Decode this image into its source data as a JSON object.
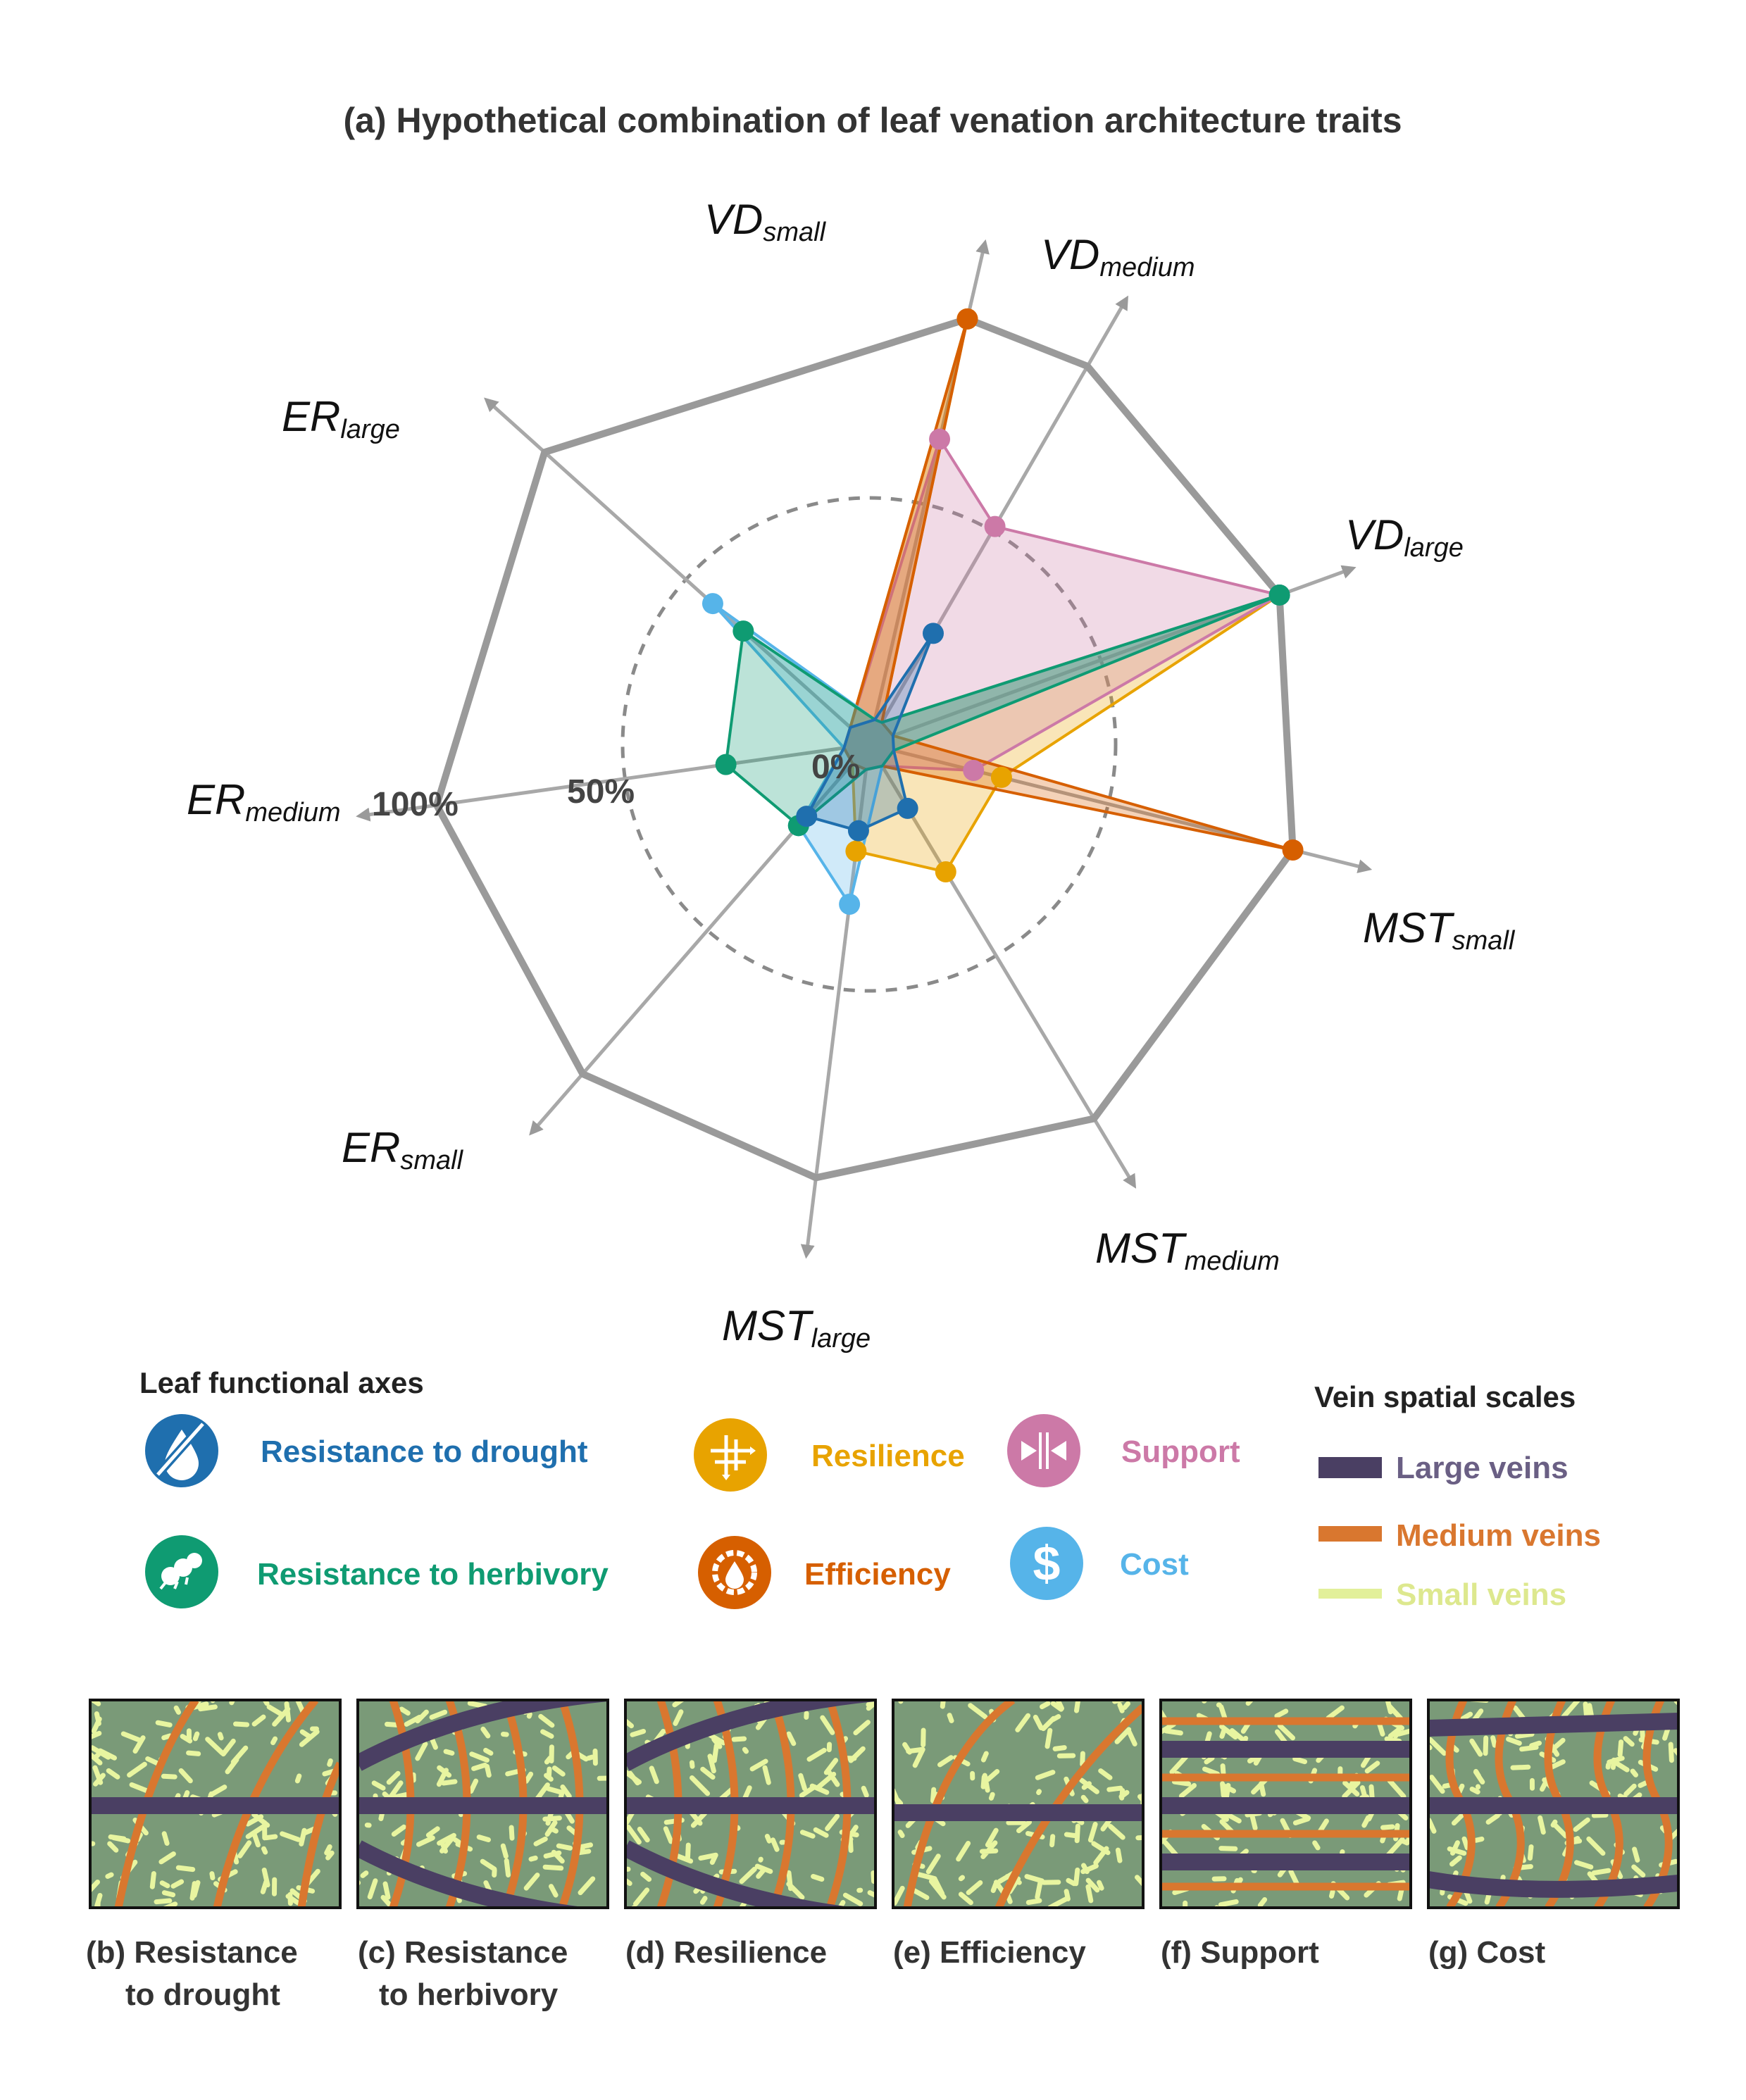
{
  "title": "(a) Hypothetical combination of leaf venation architecture traits",
  "colors": {
    "frame": "#9a9a9a",
    "ring": "#8a8a8a",
    "drought": "#1f6fae",
    "herbivory": "#0f9b72",
    "resilience": "#e8a300",
    "efficiency": "#d65f00",
    "support": "#cc79a7",
    "cost": "#56b4e9",
    "large_vein": "#4a3f63",
    "medium_vein": "#d9772f",
    "small_vein": "#e8f5a0",
    "leaf_bg": "#7a9a78"
  },
  "axes": [
    {
      "main": "VD",
      "sub": "small"
    },
    {
      "main": "VD",
      "sub": "medium"
    },
    {
      "main": "VD",
      "sub": "large"
    },
    {
      "main": "MST",
      "sub": "small"
    },
    {
      "main": "MST",
      "sub": "medium"
    },
    {
      "main": "MST",
      "sub": "large"
    },
    {
      "main": "ER",
      "sub": "small"
    },
    {
      "main": "ER",
      "sub": "medium"
    },
    {
      "main": "ER",
      "sub": "large"
    }
  ],
  "ring_labels": {
    "zero": "0%",
    "half": "50%",
    "full": "100%"
  },
  "chart_data": {
    "type": "radar",
    "range_percent": [
      0,
      100
    ],
    "categories": [
      "VDsmall",
      "VDmedium",
      "VDlarge",
      "MSTsmall",
      "MSTmedium",
      "MSTlarge",
      "ERsmall",
      "ERmedium",
      "ERlarge"
    ],
    "series": [
      {
        "name": "Resilience",
        "color": "#e8a300",
        "values": [
          100,
          0,
          100,
          27,
          30,
          20,
          0,
          0,
          0
        ]
      },
      {
        "name": "Support",
        "color": "#cc79a7",
        "values": [
          70,
          55,
          100,
          20,
          0,
          0,
          0,
          0,
          0
        ]
      },
      {
        "name": "Efficiency",
        "color": "#d65f00",
        "values": [
          100,
          0,
          0,
          100,
          0,
          0,
          0,
          0,
          0
        ]
      },
      {
        "name": "Cost",
        "color": "#56b4e9",
        "values": [
          0,
          0,
          100,
          0,
          0,
          33,
          20,
          0,
          45
        ]
      },
      {
        "name": "Resistance to herbivory",
        "color": "#0f9b72",
        "values": [
          0,
          0,
          100,
          0,
          0,
          0,
          20,
          29,
          35
        ]
      },
      {
        "name": "Resistance to drought",
        "color": "#1f6fae",
        "values": [
          0,
          25,
          0,
          0,
          12,
          15,
          17,
          0,
          0
        ]
      }
    ]
  },
  "legend": {
    "heading": "Leaf functional axes",
    "items": [
      {
        "label": "Resistance to drought",
        "icon": "no-water-drop-icon"
      },
      {
        "label": "Resistance to herbivory",
        "icon": "caterpillar-icon"
      },
      {
        "label": "Resilience",
        "icon": "network-arrows-icon"
      },
      {
        "label": "Efficiency",
        "icon": "gear-drop-icon"
      },
      {
        "label": "Support",
        "icon": "compression-arrows-icon"
      },
      {
        "label": "Cost",
        "icon": "dollar-icon"
      }
    ]
  },
  "vein_legend": {
    "heading": "Vein spatial scales",
    "items": [
      "Large veins",
      "Medium veins",
      "Small veins"
    ]
  },
  "panels": [
    {
      "line1": "(b) Resistance",
      "line2": "to drought"
    },
    {
      "line1": "(c) Resistance",
      "line2": "to herbivory"
    },
    {
      "line1": "(d) Resilience",
      "line2": ""
    },
    {
      "line1": "(e) Efficiency",
      "line2": ""
    },
    {
      "line1": "(f) Support",
      "line2": ""
    },
    {
      "line1": "(g) Cost",
      "line2": ""
    }
  ]
}
